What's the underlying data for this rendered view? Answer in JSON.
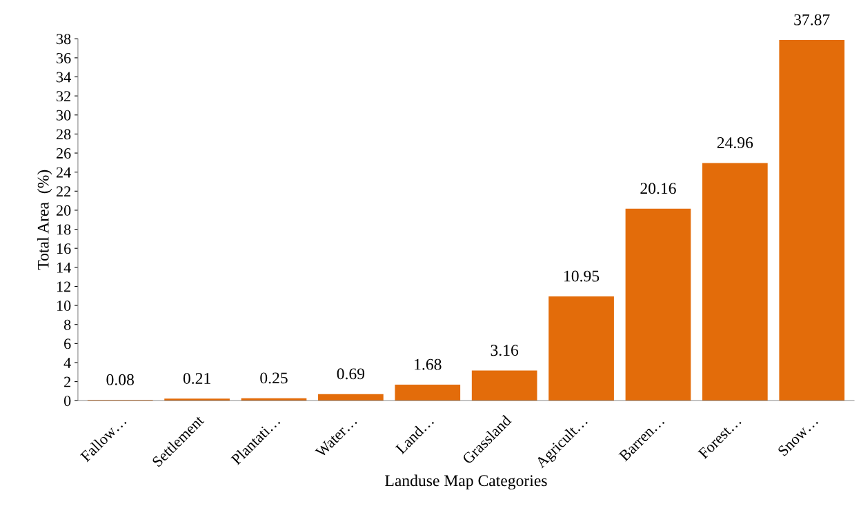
{
  "chart_data": {
    "type": "bar",
    "xlabel": "Landuse Map Categories",
    "ylabel": "Total Area  (%)",
    "categories": [
      "Fallow…",
      "Settlement",
      "Plantati…",
      "Water…",
      "Land…",
      "Grassland",
      "Agricult…",
      "Barren…",
      "Forest…",
      "Snow…"
    ],
    "values": [
      0.08,
      0.21,
      0.25,
      0.69,
      1.68,
      3.16,
      10.95,
      20.16,
      24.96,
      37.87
    ],
    "color": "#e36c0a",
    "ylim": [
      0,
      38
    ],
    "yticks": [
      0,
      2,
      4,
      6,
      8,
      10,
      12,
      14,
      16,
      18,
      20,
      22,
      24,
      26,
      28,
      30,
      32,
      34,
      36,
      38
    ],
    "data_labels": true,
    "grid": false,
    "legend": false
  }
}
